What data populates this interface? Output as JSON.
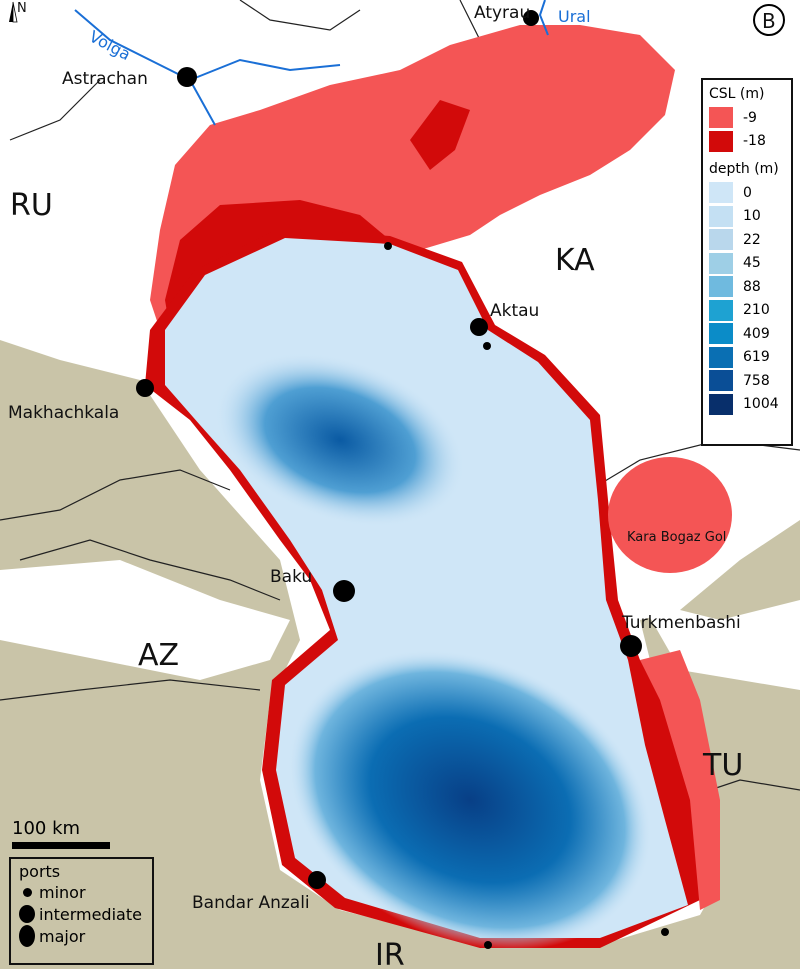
{
  "panel_label": "B",
  "north_label": "N",
  "countries": {
    "ru": "RU",
    "ka": "KA",
    "az": "AZ",
    "tu": "TU",
    "ir": "IR"
  },
  "rivers": {
    "volga": "Volga",
    "ural": "Ural"
  },
  "cities": {
    "astrachan": "Astrachan",
    "atyrau": "Atyrau",
    "aktau": "Aktau",
    "makhachkala": "Makhachkala",
    "baku": "Baku",
    "turkmenbashi": "Turkmenbashi",
    "bandar_anzali": "Bandar Anzali",
    "kara_bogaz_gol": "Kara Bogaz Gol"
  },
  "legend": {
    "csl_title": "CSL (m)",
    "csl": [
      {
        "label": "-9",
        "color": "#f45555"
      },
      {
        "label": "-18",
        "color": "#d20a0a"
      }
    ],
    "depth_title": "depth (m)",
    "depth": [
      {
        "label": "0",
        "color": "#cfe6f7"
      },
      {
        "label": "10",
        "color": "#c4e0f3"
      },
      {
        "label": "22",
        "color": "#b9d7ec"
      },
      {
        "label": "45",
        "color": "#9ecfe6"
      },
      {
        "label": "88",
        "color": "#6fbadf"
      },
      {
        "label": "210",
        "color": "#1ea2d2"
      },
      {
        "label": "409",
        "color": "#0b8cc8"
      },
      {
        "label": "619",
        "color": "#0a6fb3"
      },
      {
        "label": "758",
        "color": "#0a4e96"
      },
      {
        "label": "1004",
        "color": "#082f6b"
      }
    ]
  },
  "scale": "100 km",
  "ports_legend": {
    "title": "ports",
    "items": [
      "minor",
      "intermediate",
      "major"
    ]
  },
  "colors": {
    "land": "#c9c4a8",
    "sea_shallow": "#cfe6f7",
    "sea_deep": "#0a5aa3",
    "csl9": "#f45555",
    "csl18": "#d20a0a",
    "river": "#1a6fd6"
  }
}
